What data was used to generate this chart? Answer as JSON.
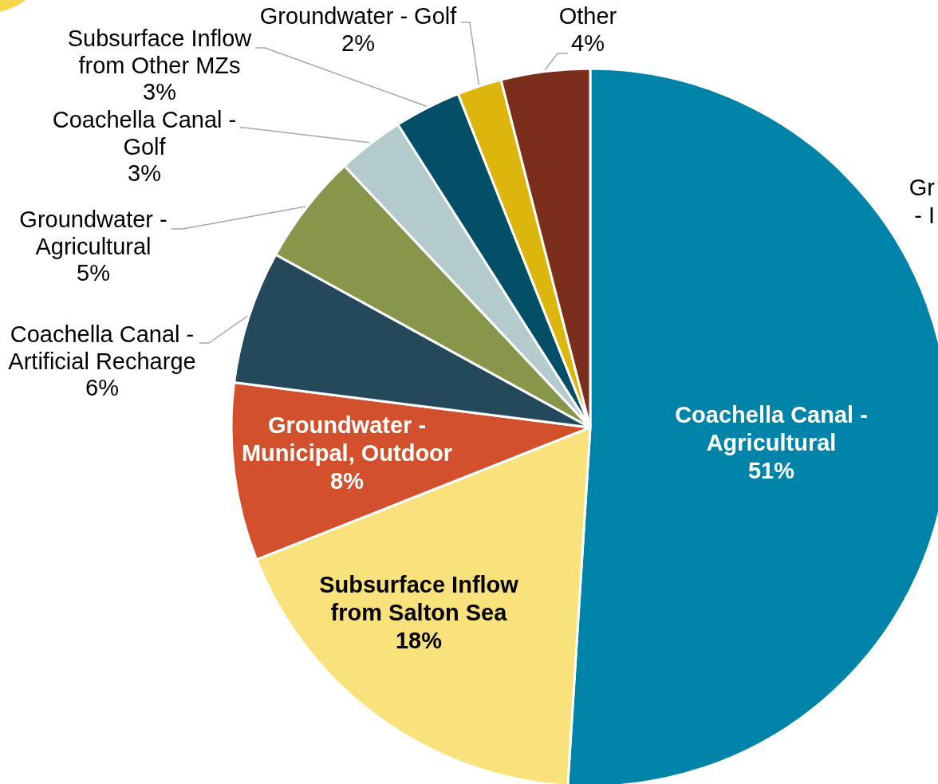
{
  "chart_data": {
    "type": "pie",
    "categories": [
      "Coachella Canal - Agricultural",
      "Subsurface Inflow from Salton Sea",
      "Groundwater - Municipal, Outdoor",
      "Coachella Canal - Artificial Recharge",
      "Groundwater - Agricultural",
      "Coachella Canal - Golf",
      "Subsurface Inflow from Other MZs",
      "Groundwater - Golf",
      "Other"
    ],
    "values": [
      51,
      18,
      8,
      6,
      5,
      3,
      3,
      2,
      4
    ],
    "value_labels": [
      "51%",
      "18%",
      "8%",
      "6%",
      "5%",
      "3%",
      "3%",
      "2%",
      "4%"
    ],
    "colors": [
      "#0083a9",
      "#f9e27c",
      "#d2502c",
      "#24495b",
      "#87964a",
      "#b3cbcd",
      "#034f68",
      "#dcb60c",
      "#7c2e1c"
    ],
    "annotations": [
      "Gr\n- I"
    ]
  }
}
